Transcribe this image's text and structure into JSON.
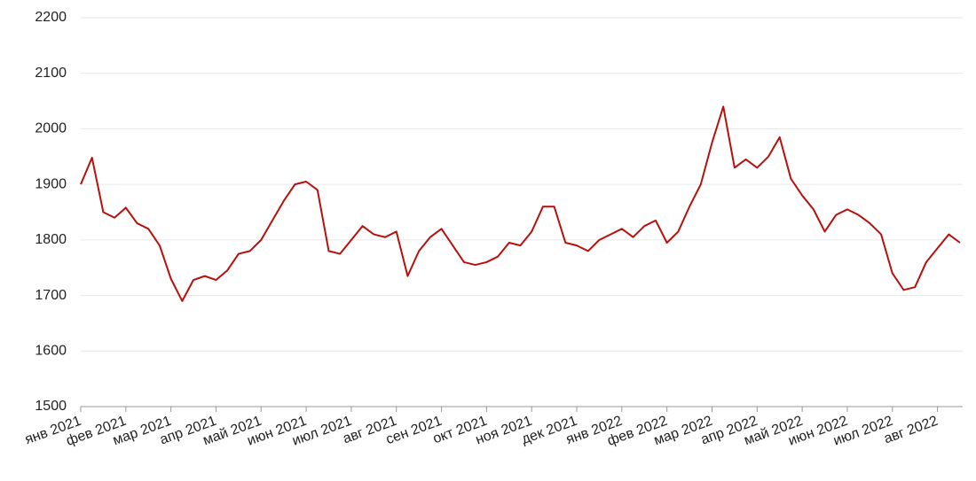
{
  "chart_data": {
    "type": "line",
    "categories": [
      "янв 2021",
      null,
      null,
      null,
      "фев 2021",
      null,
      null,
      null,
      "мар 2021",
      null,
      null,
      null,
      "апр 2021",
      null,
      null,
      null,
      "май 2021",
      null,
      null,
      null,
      "июн 2021",
      null,
      null,
      null,
      "июл 2021",
      null,
      null,
      null,
      "авг 2021",
      null,
      null,
      null,
      "сен 2021",
      null,
      null,
      null,
      "окт 2021",
      null,
      null,
      null,
      "ноя 2021",
      null,
      null,
      null,
      "дек 2021",
      null,
      null,
      null,
      "янв 2022",
      null,
      null,
      null,
      "фев 2022",
      null,
      null,
      null,
      "мар 2022",
      null,
      null,
      null,
      "апр 2022",
      null,
      null,
      null,
      "май 2022",
      null,
      null,
      null,
      "июн 2022",
      null,
      null,
      null,
      "июл 2022",
      null,
      null,
      null,
      "авг 2022",
      null,
      null
    ],
    "series": [
      {
        "color": "#b8100c",
        "values": [
          1900,
          1948,
          1850,
          1840,
          1858,
          1830,
          1820,
          1790,
          1730,
          1690,
          1728,
          1735,
          1728,
          1745,
          1775,
          1780,
          1800,
          1835,
          1870,
          1900,
          1905,
          1890,
          1780,
          1775,
          1800,
          1825,
          1810,
          1805,
          1815,
          1735,
          1780,
          1805,
          1820,
          1790,
          1760,
          1755,
          1760,
          1770,
          1795,
          1790,
          1815,
          1860,
          1860,
          1795,
          1790,
          1780,
          1800,
          1810,
          1820,
          1805,
          1825,
          1835,
          1795,
          1815,
          1860,
          1900,
          1975,
          2040,
          1930,
          1945,
          1930,
          1950,
          1985,
          1910,
          1880,
          1855,
          1815,
          1845,
          1855,
          1845,
          1830,
          1810,
          1740,
          1710,
          1715,
          1760,
          1785,
          1810,
          1795
        ]
      }
    ],
    "ylim": [
      1500,
      2200
    ],
    "yticks": [
      1500,
      1600,
      1700,
      1800,
      1900,
      2000,
      2100,
      2200
    ],
    "grid": true
  }
}
